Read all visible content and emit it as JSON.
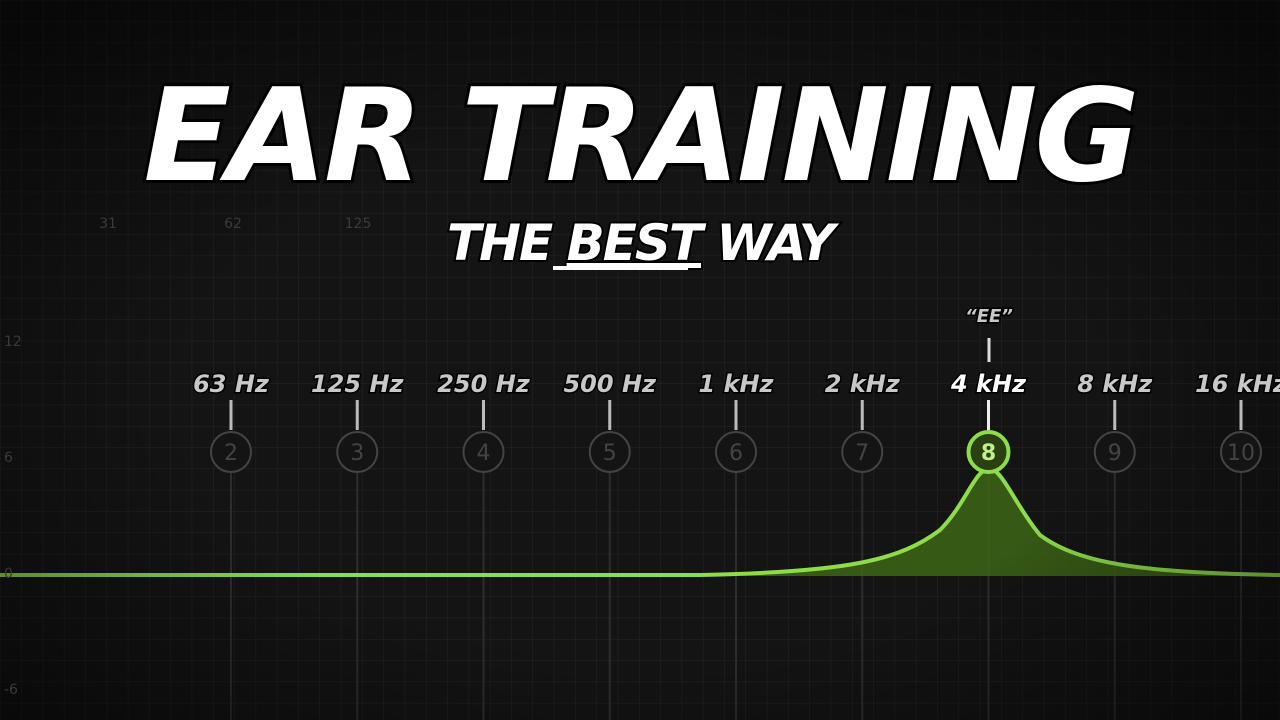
{
  "header": {
    "title": "EAR TRAINING",
    "subtitle": {
      "before": "THE",
      "emphasis": "BEST",
      "after": "WAY"
    }
  },
  "frequency_scale": [
    "31",
    "62",
    "125"
  ],
  "gain_scale": [
    "12",
    "6",
    "0",
    "-6"
  ],
  "annotation": "“EE”",
  "bands": [
    {
      "label": "63 Hz",
      "number": 2
    },
    {
      "label": "125 Hz",
      "number": 3
    },
    {
      "label": "250 Hz",
      "number": 4
    },
    {
      "label": "500 Hz",
      "number": 5
    },
    {
      "label": "1 kHz",
      "number": 6
    },
    {
      "label": "2 kHz",
      "number": 7
    },
    {
      "label": "4 kHz",
      "number": 8
    },
    {
      "label": "8 kHz",
      "number": 9
    },
    {
      "label": "16 kHz",
      "number": 10
    }
  ],
  "active_band": 6
}
